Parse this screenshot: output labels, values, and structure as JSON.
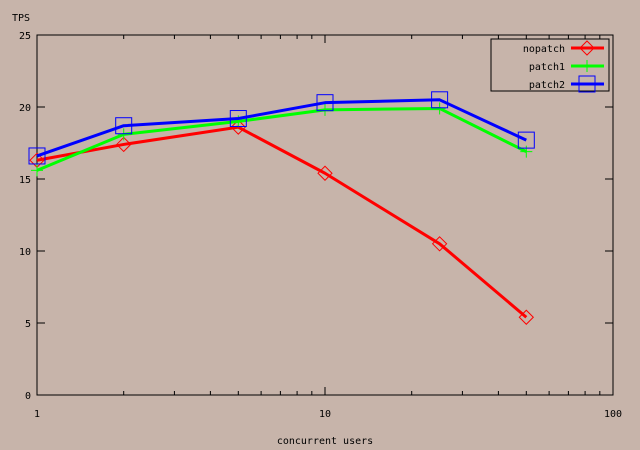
{
  "chart_data": {
    "type": "line",
    "title": "",
    "xlabel": "concurrent users",
    "ylabel": "TPS",
    "x_scale": "log",
    "xlim": [
      1,
      100
    ],
    "ylim": [
      0,
      25
    ],
    "x_ticks": [
      1,
      10,
      100
    ],
    "y_ticks": [
      0,
      5,
      10,
      15,
      20,
      25
    ],
    "grid": false,
    "legend_position": "top-right",
    "series": [
      {
        "name": "nopatch",
        "color": "#ff0000",
        "marker": "diamond",
        "x": [
          1,
          2,
          5,
          10,
          25,
          50
        ],
        "y": [
          16.3,
          17.4,
          18.6,
          15.4,
          10.5,
          5.4
        ]
      },
      {
        "name": "patch1",
        "color": "#00ff00",
        "marker": "plus",
        "x": [
          1,
          2,
          5,
          10,
          25,
          50
        ],
        "y": [
          15.6,
          18.1,
          19.0,
          19.8,
          19.9,
          16.9
        ]
      },
      {
        "name": "patch2",
        "color": "#0000ff",
        "marker": "square",
        "x": [
          1,
          2,
          5,
          10,
          25,
          50
        ],
        "y": [
          16.6,
          18.7,
          19.2,
          20.3,
          20.5,
          17.7
        ]
      }
    ]
  }
}
